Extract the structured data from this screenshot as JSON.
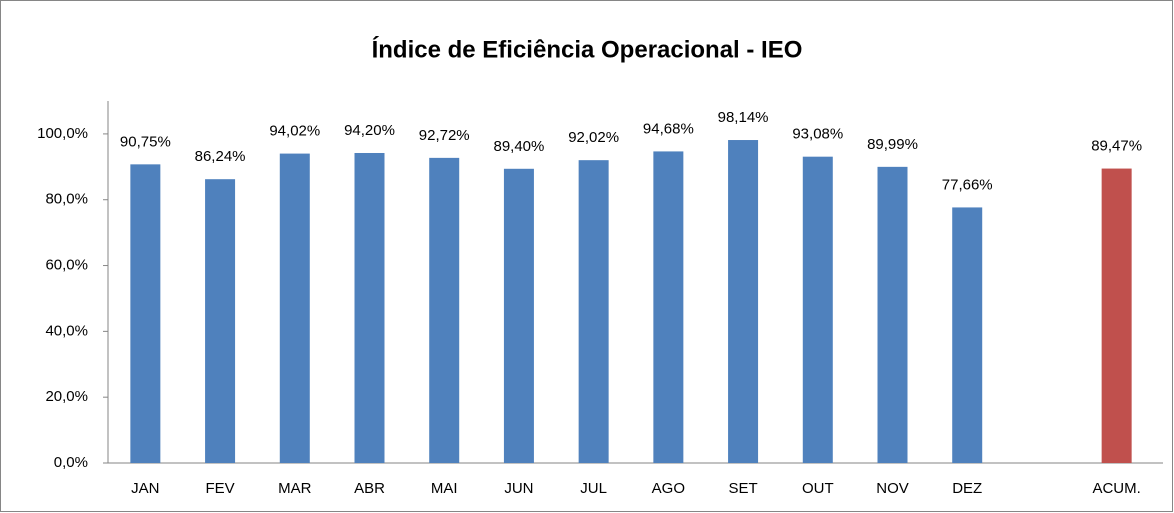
{
  "chart_data": {
    "type": "bar",
    "title": "Índice de Eficiência Operacional - IEO",
    "categories": [
      "JAN",
      "FEV",
      "MAR",
      "ABR",
      "MAI",
      "JUN",
      "JUL",
      "AGO",
      "SET",
      "OUT",
      "NOV",
      "DEZ",
      null,
      "ACUM."
    ],
    "values": [
      90.75,
      86.24,
      94.02,
      94.2,
      92.72,
      89.4,
      92.02,
      94.68,
      98.14,
      93.08,
      89.99,
      77.66,
      null,
      89.47
    ],
    "value_labels": [
      "90,75%",
      "86,24%",
      "94,02%",
      "94,20%",
      "92,72%",
      "89,40%",
      "92,02%",
      "94,68%",
      "98,14%",
      "93,08%",
      "89,99%",
      "77,66%",
      null,
      "89,47%"
    ],
    "colors": [
      "#4f81bd",
      "#4f81bd",
      "#4f81bd",
      "#4f81bd",
      "#4f81bd",
      "#4f81bd",
      "#4f81bd",
      "#4f81bd",
      "#4f81bd",
      "#4f81bd",
      "#4f81bd",
      "#4f81bd",
      null,
      "#c0504d"
    ],
    "ylim": [
      0,
      110
    ],
    "yticks": [
      {
        "value": 0,
        "label": "0,0%"
      },
      {
        "value": 20,
        "label": "20,0%"
      },
      {
        "value": 40,
        "label": "40,0%"
      },
      {
        "value": 60,
        "label": "60,0%"
      },
      {
        "value": 80,
        "label": "80,0%"
      },
      {
        "value": 100,
        "label": "100,0%"
      }
    ]
  }
}
